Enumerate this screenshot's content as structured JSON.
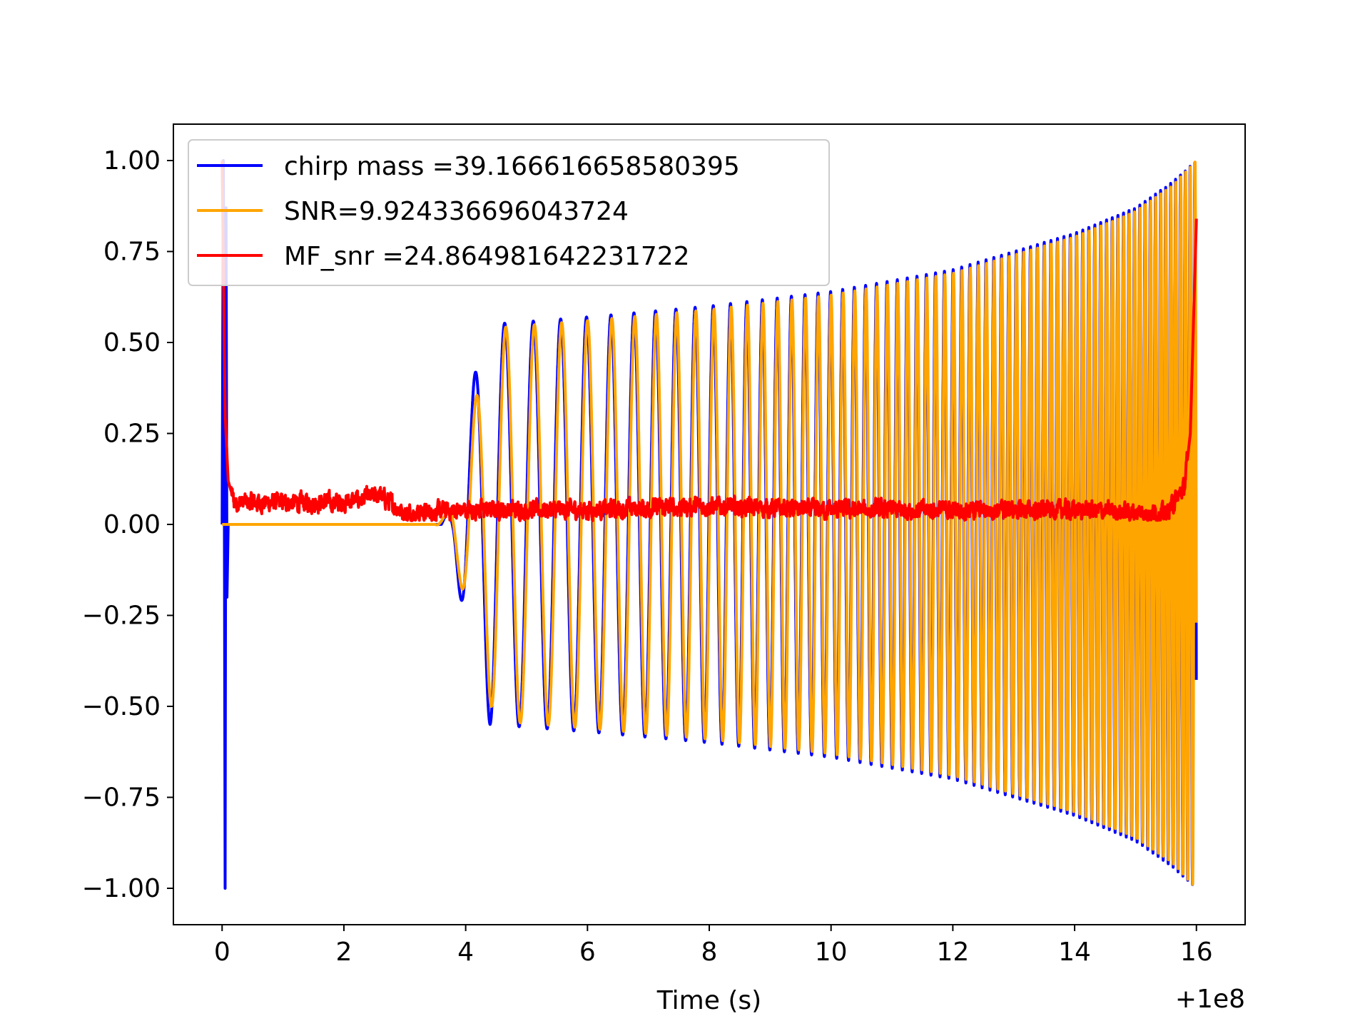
{
  "chart_data": {
    "type": "line",
    "title": "",
    "xlabel": "Time (s)",
    "ylabel": "",
    "x_offset_label": "+1e8",
    "xlim": [
      -0.8,
      16.8
    ],
    "ylim": [
      -1.1,
      1.1
    ],
    "xticks": [
      0,
      2,
      4,
      6,
      8,
      10,
      12,
      14,
      16
    ],
    "xtick_labels": [
      "0",
      "2",
      "4",
      "6",
      "8",
      "10",
      "12",
      "14",
      "16"
    ],
    "yticks": [
      1.0,
      0.75,
      0.5,
      0.25,
      0.0,
      -0.25,
      -0.5,
      -0.75,
      -1.0
    ],
    "ytick_labels": [
      "1.00",
      "0.75",
      "0.50",
      "0.25",
      "0.00",
      "−0.25",
      "−0.50",
      "−0.75",
      "−1.00"
    ],
    "grid": false,
    "legend_position": "top-left",
    "series": [
      {
        "name": "chirp mass =39.166616658580395",
        "color": "#0000ff",
        "description_points": {
          "x": [
            0.0,
            0.03,
            0.06,
            0.08,
            0.1,
            0.15,
            3.6,
            3.8,
            4.0,
            4.2,
            4.4,
            6.0,
            8.0,
            10.0,
            12.0,
            14.0,
            15.0,
            15.6,
            16.0
          ],
          "envelope": [
            1.0,
            1.0,
            0.87,
            0.3,
            0.0,
            0.0,
            0.0,
            0.07,
            0.3,
            0.45,
            0.55,
            0.57,
            0.6,
            0.64,
            0.7,
            0.8,
            0.87,
            0.94,
            1.0
          ]
        }
      },
      {
        "name": "SNR=9.924336696043724",
        "color": "#ffa500",
        "description_points": {
          "x": [
            0.0,
            3.5,
            3.7,
            3.9,
            4.1,
            4.3,
            4.5,
            6.0,
            8.0,
            10.0,
            12.0,
            14.0,
            15.0,
            15.6,
            16.0
          ],
          "envelope": [
            0.0,
            0.0,
            0.03,
            0.15,
            0.3,
            0.44,
            0.54,
            0.56,
            0.59,
            0.63,
            0.69,
            0.79,
            0.86,
            0.93,
            1.0
          ]
        }
      },
      {
        "name": "MF_snr =24.864981642231722",
        "color": "#ff0000",
        "description_points": {
          "x": [
            0.0,
            0.05,
            0.1,
            0.2,
            1.0,
            2.0,
            2.6,
            3.0,
            4.0,
            6.0,
            8.0,
            10.0,
            12.0,
            14.0,
            15.5,
            15.8,
            15.9,
            16.0
          ],
          "y": [
            1.0,
            0.3,
            0.12,
            0.06,
            0.06,
            0.06,
            0.08,
            0.03,
            0.04,
            0.04,
            0.05,
            0.04,
            0.04,
            0.04,
            0.03,
            0.1,
            0.25,
            0.84
          ]
        }
      }
    ]
  }
}
